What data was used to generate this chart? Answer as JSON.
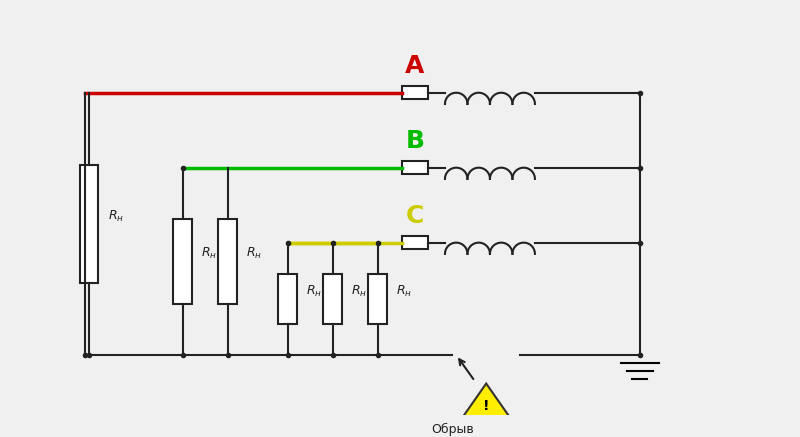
{
  "bg_color": "#f0f0f0",
  "phase_A_color": "#cc0000",
  "phase_B_color": "#00bb00",
  "phase_C_color": "#cccc00",
  "wire_color": "#222222",
  "label_A": "A",
  "label_B": "B",
  "label_C": "C",
  "label_R": "R",
  "label_sub": "н",
  "label_obriv": "Обрыв",
  "warning_color": "#ffee00",
  "warning_border": "#333333"
}
